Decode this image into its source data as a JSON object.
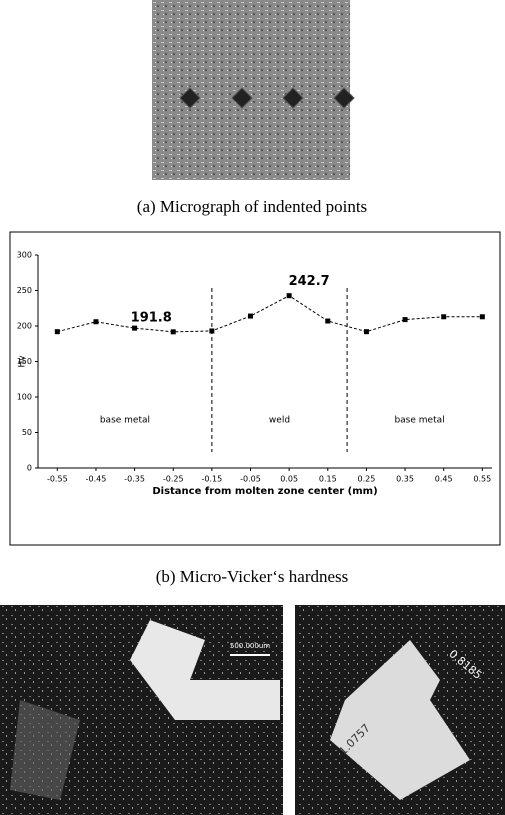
{
  "captions": [
    "(a) Micrograph of indented points",
    "(b) Micro-Vicker‘s hardness"
  ],
  "images": {
    "scale_bar": "500.000um",
    "measure_1": "0.8185",
    "measure_2": "1.0757"
  },
  "chart_data": {
    "type": "line",
    "x_label": "Distance from molten zone center (mm)",
    "y_label": "Hv",
    "x": [
      -0.55,
      -0.45,
      -0.35,
      -0.25,
      -0.15,
      -0.05,
      0.05,
      0.15,
      0.25,
      0.35,
      0.45,
      0.55
    ],
    "values": [
      192,
      206,
      197,
      191.8,
      193,
      214,
      242.7,
      207,
      192,
      209,
      213,
      213
    ],
    "value_labels": [
      null,
      null,
      null,
      "191.8",
      null,
      null,
      "242.7",
      null,
      null,
      null,
      null,
      null
    ],
    "color": "#000000",
    "xlim": [
      -0.6,
      0.575
    ],
    "xticks": [
      -0.55,
      -0.45,
      -0.35,
      -0.25,
      -0.15,
      -0.05,
      0.05,
      0.15,
      0.25,
      0.35,
      0.45,
      0.55
    ],
    "ylim": [
      0,
      300
    ],
    "yticks": [
      0,
      50,
      100,
      150,
      200,
      250,
      300
    ],
    "dividers": [
      -0.15,
      0.2
    ],
    "region_labels": [
      "base metal",
      "weld",
      "base metal"
    ]
  }
}
